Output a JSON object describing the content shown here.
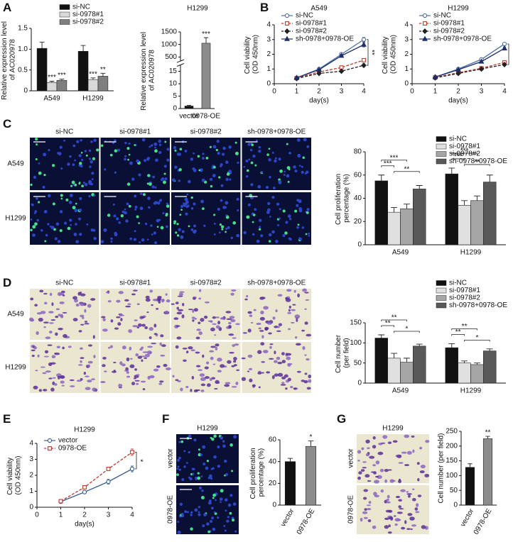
{
  "panel_letters": [
    "A",
    "B",
    "C",
    "D",
    "E",
    "F",
    "G"
  ],
  "micrographs": {
    "C": {
      "columns": [
        "si-NC",
        "si-0978#1",
        "si-0978#2",
        "sh-0978+0978-OE"
      ],
      "rows": [
        "A549",
        "H1299"
      ]
    },
    "D": {
      "columns": [
        "si-NC",
        "si-0978#1",
        "si-0978#2",
        "sh-0978+0978-OE"
      ],
      "rows": [
        "A549",
        "H1299"
      ]
    },
    "F": {
      "title": "H1299",
      "rows": [
        "vector",
        "0978-OE"
      ]
    },
    "G": {
      "title": "H1299",
      "rows": [
        "vector",
        "0978-OE"
      ]
    }
  },
  "chart_data": [
    {
      "type": "bar",
      "ylabel": "Relative expression level of AC020978",
      "categories": [
        "A549",
        "H1299"
      ],
      "ylim": [
        0,
        1.5
      ],
      "yticks": [
        0,
        0.5,
        {
          "value": 1,
          "label": "1.0"
        },
        1.5
      ],
      "legend": "top-right",
      "series": [
        {
          "name": "si-NC",
          "color": "#111111",
          "values": [
            1.02,
            0.95
          ],
          "errors": [
            0.15,
            0.14
          ]
        },
        {
          "name": "si-0978#1",
          "color": "#d9d9d9",
          "values": [
            0.2,
            0.27
          ],
          "errors": [
            0.03,
            0.04
          ],
          "annotations": [
            "***",
            "***"
          ]
        },
        {
          "name": "si-0978#2",
          "color": "#7f7f7f",
          "values": [
            0.25,
            0.35
          ],
          "errors": [
            0.03,
            0.07
          ],
          "annotations": [
            "***",
            "**"
          ]
        }
      ]
    },
    {
      "type": "bar",
      "title": "H1299",
      "ylabel": "Relative expression level of AC020978",
      "categories": [
        "vector",
        "0978-OE"
      ],
      "values": [
        1,
        1050
      ],
      "errors": [
        0.3,
        220
      ],
      "colors": [
        "#111111",
        "#8c8c8c"
      ],
      "annotations": [
        null,
        "***"
      ],
      "ylim": [
        0,
        1500
      ],
      "axis_break": [
        17,
        400
      ],
      "yticks": [
        0,
        5,
        10,
        15,
        500,
        1000,
        1500
      ]
    },
    {
      "type": "line",
      "title": "A549",
      "xlabel": "day(s)",
      "ylabel": "Cell viability (OD 450nm)",
      "x": [
        1,
        2,
        3,
        4
      ],
      "xlim": [
        0,
        4
      ],
      "xticks": [
        0,
        1,
        2,
        3,
        4
      ],
      "ylim": [
        0,
        4
      ],
      "yticks": [
        0,
        1,
        2,
        3,
        4
      ],
      "legend": "top-left",
      "annotation": "**",
      "series": [
        {
          "name": "si-NC",
          "color": "#4a6fa5",
          "marker": "circle",
          "dash": false,
          "values": [
            0.4,
            1.0,
            2.0,
            3.0
          ],
          "errors": [
            0.04,
            0.06,
            0.1,
            0.15
          ]
        },
        {
          "name": "si-0978#1",
          "color": "#c0392b",
          "marker": "square",
          "dash": true,
          "values": [
            0.38,
            0.8,
            1.1,
            1.6
          ],
          "errors": [
            0.03,
            0.05,
            0.08,
            0.1
          ]
        },
        {
          "name": "si-0978#2",
          "color": "#222222",
          "marker": "diamond",
          "dash": true,
          "values": [
            0.35,
            0.7,
            0.85,
            1.25
          ],
          "errors": [
            0.03,
            0.05,
            0.07,
            0.1
          ]
        },
        {
          "name": "sh-0978+0978-OE",
          "color": "#1f2d6b",
          "marker": "triangle",
          "dash": false,
          "values": [
            0.4,
            0.95,
            1.9,
            2.65
          ],
          "errors": [
            0.04,
            0.06,
            0.1,
            0.15
          ]
        }
      ]
    },
    {
      "type": "line",
      "title": "H1299",
      "xlabel": "day(s)",
      "ylabel": "Cell viability (OD 450nm)",
      "x": [
        1,
        2,
        3,
        4
      ],
      "xlim": [
        0,
        4
      ],
      "xticks": [
        0,
        1,
        2,
        3,
        4
      ],
      "ylim": [
        0,
        4
      ],
      "yticks": [
        0,
        1,
        2,
        3,
        4
      ],
      "legend": "top-left",
      "annotation": "**",
      "series": [
        {
          "name": "si-NC",
          "color": "#4a6fa5",
          "marker": "circle",
          "dash": false,
          "values": [
            0.45,
            1.0,
            1.65,
            2.7
          ],
          "errors": [
            0.04,
            0.06,
            0.08,
            0.1
          ]
        },
        {
          "name": "si-0978#1",
          "color": "#c0392b",
          "marker": "square",
          "dash": true,
          "values": [
            0.42,
            0.75,
            1.05,
            1.45
          ],
          "errors": [
            0.03,
            0.05,
            0.07,
            0.1
          ]
        },
        {
          "name": "si-0978#2",
          "color": "#222222",
          "marker": "diamond",
          "dash": true,
          "values": [
            0.4,
            0.7,
            1.0,
            1.3
          ],
          "errors": [
            0.03,
            0.05,
            0.07,
            0.08
          ]
        },
        {
          "name": "sh-0978+0978-OE",
          "color": "#1f2d6b",
          "marker": "triangle",
          "dash": false,
          "values": [
            0.45,
            0.95,
            1.5,
            2.4
          ],
          "errors": [
            0.04,
            0.06,
            0.08,
            0.1
          ]
        }
      ]
    },
    {
      "type": "bar",
      "ylabel": "Cell proliferation percentage (%)",
      "categories": [
        "A549",
        "H1299"
      ],
      "ylim": [
        0,
        80
      ],
      "yticks": [
        0,
        20,
        40,
        60,
        80
      ],
      "legend": "top-right",
      "brackets": [
        [
          "***",
          "***",
          "**"
        ],
        [
          "***",
          "***",
          "**"
        ]
      ],
      "series": [
        {
          "name": "si-NC",
          "color": "#111111",
          "values": [
            55,
            61
          ],
          "errors": [
            5,
            5
          ]
        },
        {
          "name": "si-0978#1",
          "color": "#e0e0e0",
          "values": [
            28,
            34
          ],
          "errors": [
            4,
            4
          ]
        },
        {
          "name": "si-0978#2",
          "color": "#a6a6a6",
          "values": [
            31,
            38
          ],
          "errors": [
            4,
            4
          ]
        },
        {
          "name": "sh-0978+0978-OE",
          "color": "#595959",
          "values": [
            48,
            54
          ],
          "errors": [
            3,
            6
          ]
        }
      ]
    },
    {
      "type": "bar",
      "ylabel": "Cell number  (per field)",
      "categories": [
        "A549",
        "H1299"
      ],
      "ylim": [
        0,
        150
      ],
      "yticks": [
        0,
        50,
        100,
        150
      ],
      "legend": "top-right",
      "brackets": [
        [
          "**",
          "**",
          "*"
        ],
        [
          "**",
          "**",
          "*"
        ]
      ],
      "series": [
        {
          "name": "si-NC",
          "color": "#111111",
          "values": [
            112,
            88
          ],
          "errors": [
            8,
            10
          ]
        },
        {
          "name": "si-0978#1",
          "color": "#e0e0e0",
          "values": [
            62,
            50
          ],
          "errors": [
            12,
            5
          ]
        },
        {
          "name": "si-0978#2",
          "color": "#a6a6a6",
          "values": [
            52,
            46
          ],
          "errors": [
            10,
            4
          ]
        },
        {
          "name": "sh-0978+0978-OE",
          "color": "#595959",
          "values": [
            92,
            80
          ],
          "errors": [
            5,
            5
          ]
        }
      ]
    },
    {
      "type": "line",
      "title": "H1299",
      "xlabel": "day(s)",
      "ylabel": "Cell viability (OD 450nm)",
      "x": [
        1,
        2,
        3,
        4
      ],
      "xlim": [
        0,
        4
      ],
      "xticks": [
        0,
        1,
        2,
        3,
        4
      ],
      "ylim": [
        0,
        4
      ],
      "yticks": [
        0,
        1,
        2,
        3,
        4
      ],
      "legend": "top-left",
      "annotation": "*",
      "series": [
        {
          "name": "vector",
          "color": "#3a5f8f",
          "marker": "circle",
          "dash": false,
          "values": [
            0.35,
            0.95,
            1.6,
            2.4
          ],
          "errors": [
            0.04,
            0.08,
            0.15,
            0.18
          ]
        },
        {
          "name": "0978-OE",
          "color": "#c0392b",
          "marker": "square",
          "dash": true,
          "values": [
            0.38,
            1.25,
            2.4,
            3.45
          ],
          "errors": [
            0.04,
            0.08,
            0.1,
            0.2
          ]
        }
      ]
    },
    {
      "type": "bar",
      "ylabel": "Cell proliferation percentage (%)",
      "categories": [
        "vector",
        "0978-OE"
      ],
      "values": [
        40,
        54
      ],
      "errors": [
        3,
        5
      ],
      "colors": [
        "#111111",
        "#8c8c8c"
      ],
      "annotations": [
        null,
        "*"
      ],
      "ylim": [
        0,
        60
      ],
      "yticks": [
        0,
        20,
        40,
        60
      ]
    },
    {
      "type": "bar",
      "ylabel": "Cell number  (per field)",
      "categories": [
        "vector",
        "0978-OE"
      ],
      "values": [
        128,
        225
      ],
      "errors": [
        12,
        8
      ],
      "colors": [
        "#111111",
        "#8c8c8c"
      ],
      "annotations": [
        null,
        "**"
      ],
      "ylim": [
        0,
        250
      ],
      "yticks": [
        0,
        50,
        100,
        150,
        200,
        250
      ]
    }
  ]
}
